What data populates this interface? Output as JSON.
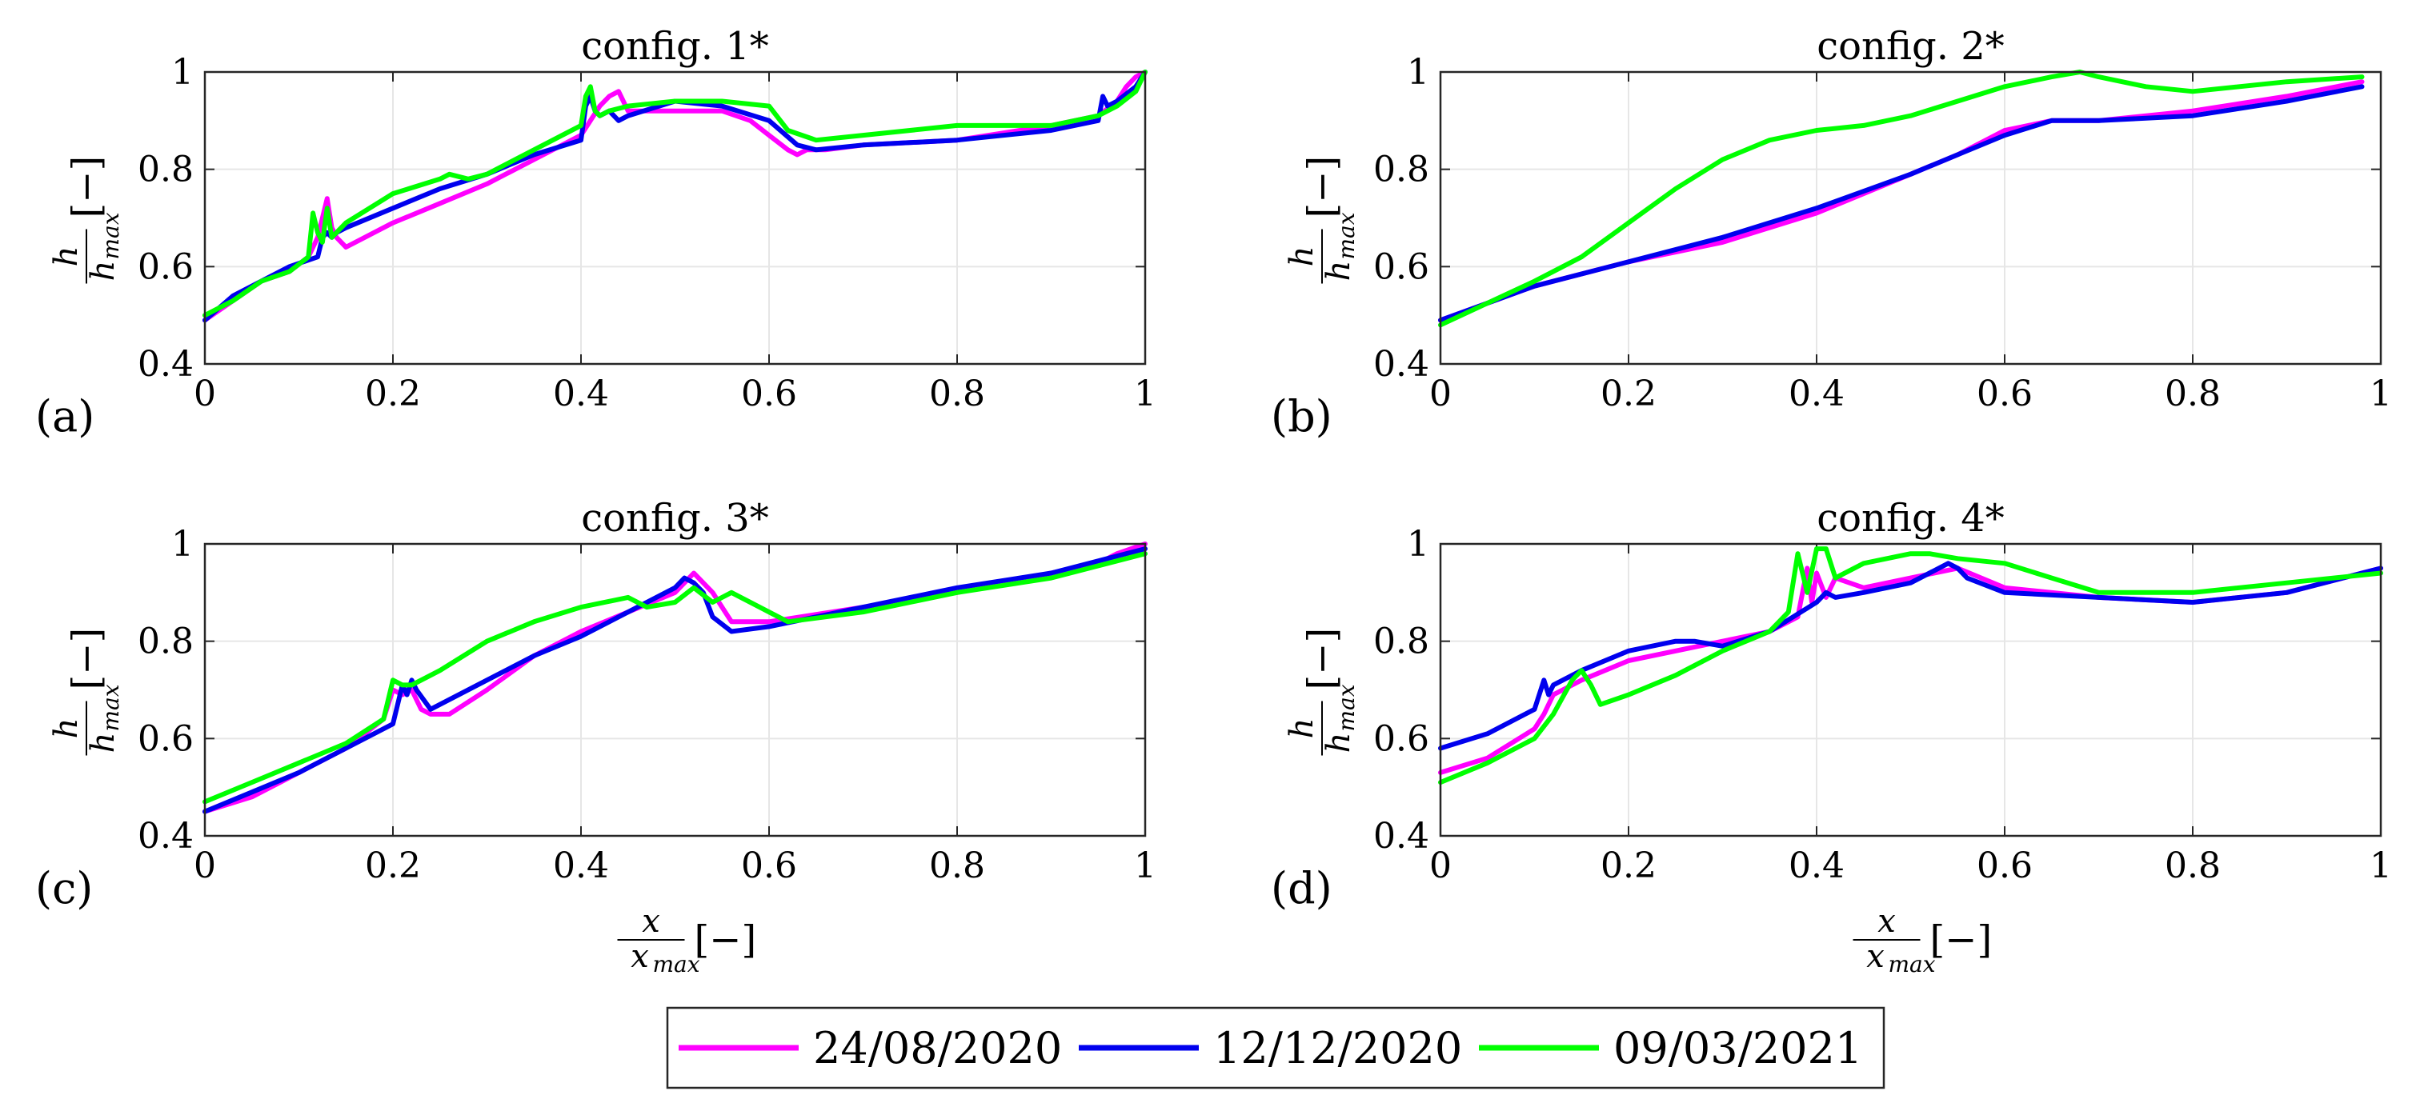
{
  "chart_data": {
    "type": "line",
    "legend": {
      "placement": "bottom-center",
      "entries": [
        {
          "label": "24/08/2020",
          "color": "#ff00ff"
        },
        {
          "label": "12/12/2020",
          "color": "#0000ee"
        },
        {
          "label": "09/03/2021",
          "color": "#00ff00"
        }
      ]
    },
    "x_label": {
      "num": "x",
      "den": "x",
      "den_sub": "max",
      "unit": "[−]"
    },
    "y_label": {
      "num": "h",
      "den": "h",
      "den_sub": "max",
      "unit": "[−]"
    },
    "panels": [
      {
        "id": "a",
        "panel_label": "(a)",
        "title": "config. 1*",
        "xlim": [
          0,
          1
        ],
        "ylim": [
          0.4,
          1
        ],
        "x_ticks": [
          "0",
          "0.2",
          "0.4",
          "0.6",
          "0.8",
          "1"
        ],
        "y_ticks": [
          "0.4",
          "0.6",
          "0.8",
          "1"
        ],
        "grid": true,
        "series": [
          {
            "name": "24/08/2020",
            "color": "#ff00ff",
            "x": [
              0,
              0.03,
              0.06,
              0.09,
              0.11,
              0.12,
              0.13,
              0.135,
              0.14,
              0.15,
              0.2,
              0.25,
              0.3,
              0.35,
              0.4,
              0.41,
              0.42,
              0.43,
              0.44,
              0.45,
              0.5,
              0.55,
              0.58,
              0.6,
              0.62,
              0.63,
              0.64,
              0.66,
              0.7,
              0.8,
              0.9,
              0.95,
              0.97,
              0.98,
              0.99,
              1.0
            ],
            "y": [
              0.49,
              0.53,
              0.57,
              0.59,
              0.62,
              0.66,
              0.74,
              0.68,
              0.66,
              0.64,
              0.69,
              0.73,
              0.77,
              0.82,
              0.87,
              0.9,
              0.93,
              0.95,
              0.96,
              0.92,
              0.92,
              0.92,
              0.9,
              0.87,
              0.84,
              0.83,
              0.84,
              0.84,
              0.85,
              0.86,
              0.89,
              0.91,
              0.94,
              0.97,
              0.99,
              1.0
            ]
          },
          {
            "name": "12/12/2020",
            "color": "#0000ee",
            "x": [
              0,
              0.03,
              0.06,
              0.09,
              0.12,
              0.125,
              0.13,
              0.135,
              0.14,
              0.15,
              0.2,
              0.25,
              0.3,
              0.35,
              0.4,
              0.405,
              0.41,
              0.415,
              0.42,
              0.43,
              0.44,
              0.45,
              0.5,
              0.55,
              0.6,
              0.63,
              0.65,
              0.7,
              0.8,
              0.9,
              0.95,
              0.955,
              0.96,
              0.97,
              0.99,
              1.0
            ],
            "y": [
              0.49,
              0.54,
              0.57,
              0.6,
              0.62,
              0.66,
              0.67,
              0.66,
              0.67,
              0.68,
              0.72,
              0.76,
              0.79,
              0.83,
              0.86,
              0.93,
              0.95,
              0.92,
              0.91,
              0.92,
              0.9,
              0.91,
              0.94,
              0.93,
              0.9,
              0.85,
              0.84,
              0.85,
              0.86,
              0.88,
              0.9,
              0.95,
              0.93,
              0.94,
              0.97,
              1.0
            ]
          },
          {
            "name": "09/03/2021",
            "color": "#00ff00",
            "x": [
              0,
              0.03,
              0.06,
              0.09,
              0.11,
              0.115,
              0.12,
              0.125,
              0.13,
              0.135,
              0.15,
              0.2,
              0.25,
              0.26,
              0.28,
              0.3,
              0.35,
              0.4,
              0.405,
              0.41,
              0.415,
              0.42,
              0.43,
              0.45,
              0.5,
              0.55,
              0.6,
              0.62,
              0.65,
              0.7,
              0.8,
              0.9,
              0.95,
              0.97,
              0.99,
              1.0
            ],
            "y": [
              0.5,
              0.53,
              0.57,
              0.59,
              0.62,
              0.71,
              0.67,
              0.65,
              0.72,
              0.66,
              0.69,
              0.75,
              0.78,
              0.79,
              0.78,
              0.79,
              0.84,
              0.89,
              0.95,
              0.97,
              0.92,
              0.91,
              0.92,
              0.93,
              0.94,
              0.94,
              0.93,
              0.88,
              0.86,
              0.87,
              0.89,
              0.89,
              0.91,
              0.93,
              0.96,
              1.0
            ]
          }
        ]
      },
      {
        "id": "b",
        "panel_label": "(b)",
        "title": "config. 2*",
        "xlim": [
          0,
          1
        ],
        "ylim": [
          0.4,
          1
        ],
        "x_ticks": [
          "0",
          "0.2",
          "0.4",
          "0.6",
          "0.8",
          "1"
        ],
        "y_ticks": [
          "0.4",
          "0.6",
          "0.8",
          "1"
        ],
        "grid": true,
        "series": [
          {
            "name": "24/08/2020",
            "color": "#ff00ff",
            "x": [
              0,
              0.1,
              0.2,
              0.3,
              0.4,
              0.5,
              0.55,
              0.6,
              0.65,
              0.7,
              0.8,
              0.9,
              0.98
            ],
            "y": [
              0.49,
              0.56,
              0.61,
              0.65,
              0.71,
              0.79,
              0.83,
              0.88,
              0.9,
              0.9,
              0.92,
              0.95,
              0.98
            ]
          },
          {
            "name": "12/12/2020",
            "color": "#0000ee",
            "x": [
              0,
              0.1,
              0.2,
              0.3,
              0.4,
              0.5,
              0.55,
              0.6,
              0.65,
              0.7,
              0.8,
              0.9,
              0.98
            ],
            "y": [
              0.49,
              0.56,
              0.61,
              0.66,
              0.72,
              0.79,
              0.83,
              0.87,
              0.9,
              0.9,
              0.91,
              0.94,
              0.97
            ]
          },
          {
            "name": "09/03/2021",
            "color": "#00ff00",
            "x": [
              0,
              0.1,
              0.15,
              0.2,
              0.25,
              0.3,
              0.35,
              0.4,
              0.45,
              0.5,
              0.55,
              0.6,
              0.65,
              0.68,
              0.7,
              0.75,
              0.8,
              0.9,
              0.98
            ],
            "y": [
              0.48,
              0.57,
              0.62,
              0.69,
              0.76,
              0.82,
              0.86,
              0.88,
              0.89,
              0.91,
              0.94,
              0.97,
              0.99,
              1.0,
              0.99,
              0.97,
              0.96,
              0.98,
              0.99
            ]
          }
        ]
      },
      {
        "id": "c",
        "panel_label": "(c)",
        "title": "config. 3*",
        "xlim": [
          0,
          1
        ],
        "ylim": [
          0.4,
          1
        ],
        "x_ticks": [
          "0",
          "0.2",
          "0.4",
          "0.6",
          "0.8",
          "1"
        ],
        "y_ticks": [
          "0.4",
          "0.6",
          "0.8",
          "1"
        ],
        "grid": true,
        "series": [
          {
            "name": "24/08/2020",
            "color": "#ff00ff",
            "x": [
              0,
              0.05,
              0.1,
              0.15,
              0.19,
              0.2,
              0.21,
              0.22,
              0.23,
              0.24,
              0.26,
              0.3,
              0.35,
              0.4,
              0.45,
              0.5,
              0.52,
              0.54,
              0.56,
              0.6,
              0.7,
              0.8,
              0.9,
              0.95,
              0.97,
              1.0
            ],
            "y": [
              0.45,
              0.48,
              0.53,
              0.58,
              0.64,
              0.7,
              0.69,
              0.7,
              0.66,
              0.65,
              0.65,
              0.7,
              0.77,
              0.82,
              0.86,
              0.9,
              0.94,
              0.9,
              0.84,
              0.84,
              0.87,
              0.9,
              0.94,
              0.96,
              0.98,
              1.0
            ]
          },
          {
            "name": "12/12/2020",
            "color": "#0000ee",
            "x": [
              0,
              0.05,
              0.1,
              0.15,
              0.2,
              0.21,
              0.215,
              0.22,
              0.225,
              0.24,
              0.3,
              0.35,
              0.4,
              0.45,
              0.5,
              0.51,
              0.52,
              0.53,
              0.54,
              0.56,
              0.6,
              0.7,
              0.8,
              0.9,
              1.0
            ],
            "y": [
              0.45,
              0.49,
              0.53,
              0.58,
              0.63,
              0.71,
              0.69,
              0.72,
              0.7,
              0.66,
              0.72,
              0.77,
              0.81,
              0.86,
              0.91,
              0.93,
              0.92,
              0.9,
              0.85,
              0.82,
              0.83,
              0.87,
              0.91,
              0.94,
              0.99
            ]
          },
          {
            "name": "09/03/2021",
            "color": "#00ff00",
            "x": [
              0,
              0.05,
              0.1,
              0.15,
              0.19,
              0.2,
              0.21,
              0.22,
              0.25,
              0.3,
              0.35,
              0.4,
              0.45,
              0.47,
              0.5,
              0.52,
              0.54,
              0.56,
              0.6,
              0.62,
              0.7,
              0.8,
              0.9,
              1.0
            ],
            "y": [
              0.47,
              0.51,
              0.55,
              0.59,
              0.64,
              0.72,
              0.71,
              0.71,
              0.74,
              0.8,
              0.84,
              0.87,
              0.89,
              0.87,
              0.88,
              0.91,
              0.88,
              0.9,
              0.86,
              0.84,
              0.86,
              0.9,
              0.93,
              0.98
            ]
          }
        ]
      },
      {
        "id": "d",
        "panel_label": "(d)",
        "title": "config. 4*",
        "xlim": [
          0,
          1
        ],
        "ylim": [
          0.4,
          1
        ],
        "x_ticks": [
          "0",
          "0.2",
          "0.4",
          "0.6",
          "0.8",
          "1"
        ],
        "y_ticks": [
          "0.4",
          "0.6",
          "0.8",
          "1"
        ],
        "grid": true,
        "series": [
          {
            "name": "24/08/2020",
            "color": "#ff00ff",
            "x": [
              0,
              0.05,
              0.1,
              0.11,
              0.12,
              0.13,
              0.15,
              0.2,
              0.3,
              0.35,
              0.38,
              0.39,
              0.395,
              0.4,
              0.41,
              0.42,
              0.45,
              0.5,
              0.55,
              0.6,
              0.7,
              0.8,
              0.9,
              1.0
            ],
            "y": [
              0.53,
              0.56,
              0.62,
              0.65,
              0.69,
              0.7,
              0.72,
              0.76,
              0.8,
              0.82,
              0.85,
              0.95,
              0.88,
              0.94,
              0.89,
              0.93,
              0.91,
              0.93,
              0.95,
              0.91,
              0.89,
              0.88,
              0.9,
              0.95
            ]
          },
          {
            "name": "12/12/2020",
            "color": "#0000ee",
            "x": [
              0,
              0.05,
              0.1,
              0.11,
              0.115,
              0.12,
              0.15,
              0.2,
              0.25,
              0.27,
              0.3,
              0.35,
              0.4,
              0.41,
              0.42,
              0.45,
              0.5,
              0.54,
              0.55,
              0.56,
              0.6,
              0.7,
              0.8,
              0.9,
              1.0
            ],
            "y": [
              0.58,
              0.61,
              0.66,
              0.72,
              0.69,
              0.71,
              0.74,
              0.78,
              0.8,
              0.8,
              0.79,
              0.82,
              0.88,
              0.9,
              0.89,
              0.9,
              0.92,
              0.96,
              0.95,
              0.93,
              0.9,
              0.89,
              0.88,
              0.9,
              0.95
            ]
          },
          {
            "name": "09/03/2021",
            "color": "#00ff00",
            "x": [
              0,
              0.05,
              0.1,
              0.12,
              0.14,
              0.15,
              0.16,
              0.17,
              0.2,
              0.25,
              0.3,
              0.35,
              0.37,
              0.38,
              0.39,
              0.4,
              0.41,
              0.42,
              0.45,
              0.5,
              0.52,
              0.55,
              0.6,
              0.65,
              0.7,
              0.8,
              0.9,
              1.0
            ],
            "y": [
              0.51,
              0.55,
              0.6,
              0.65,
              0.72,
              0.74,
              0.71,
              0.67,
              0.69,
              0.73,
              0.78,
              0.82,
              0.86,
              0.98,
              0.9,
              0.99,
              0.99,
              0.93,
              0.96,
              0.98,
              0.98,
              0.97,
              0.96,
              0.93,
              0.9,
              0.9,
              0.92,
              0.94
            ]
          }
        ]
      }
    ]
  }
}
